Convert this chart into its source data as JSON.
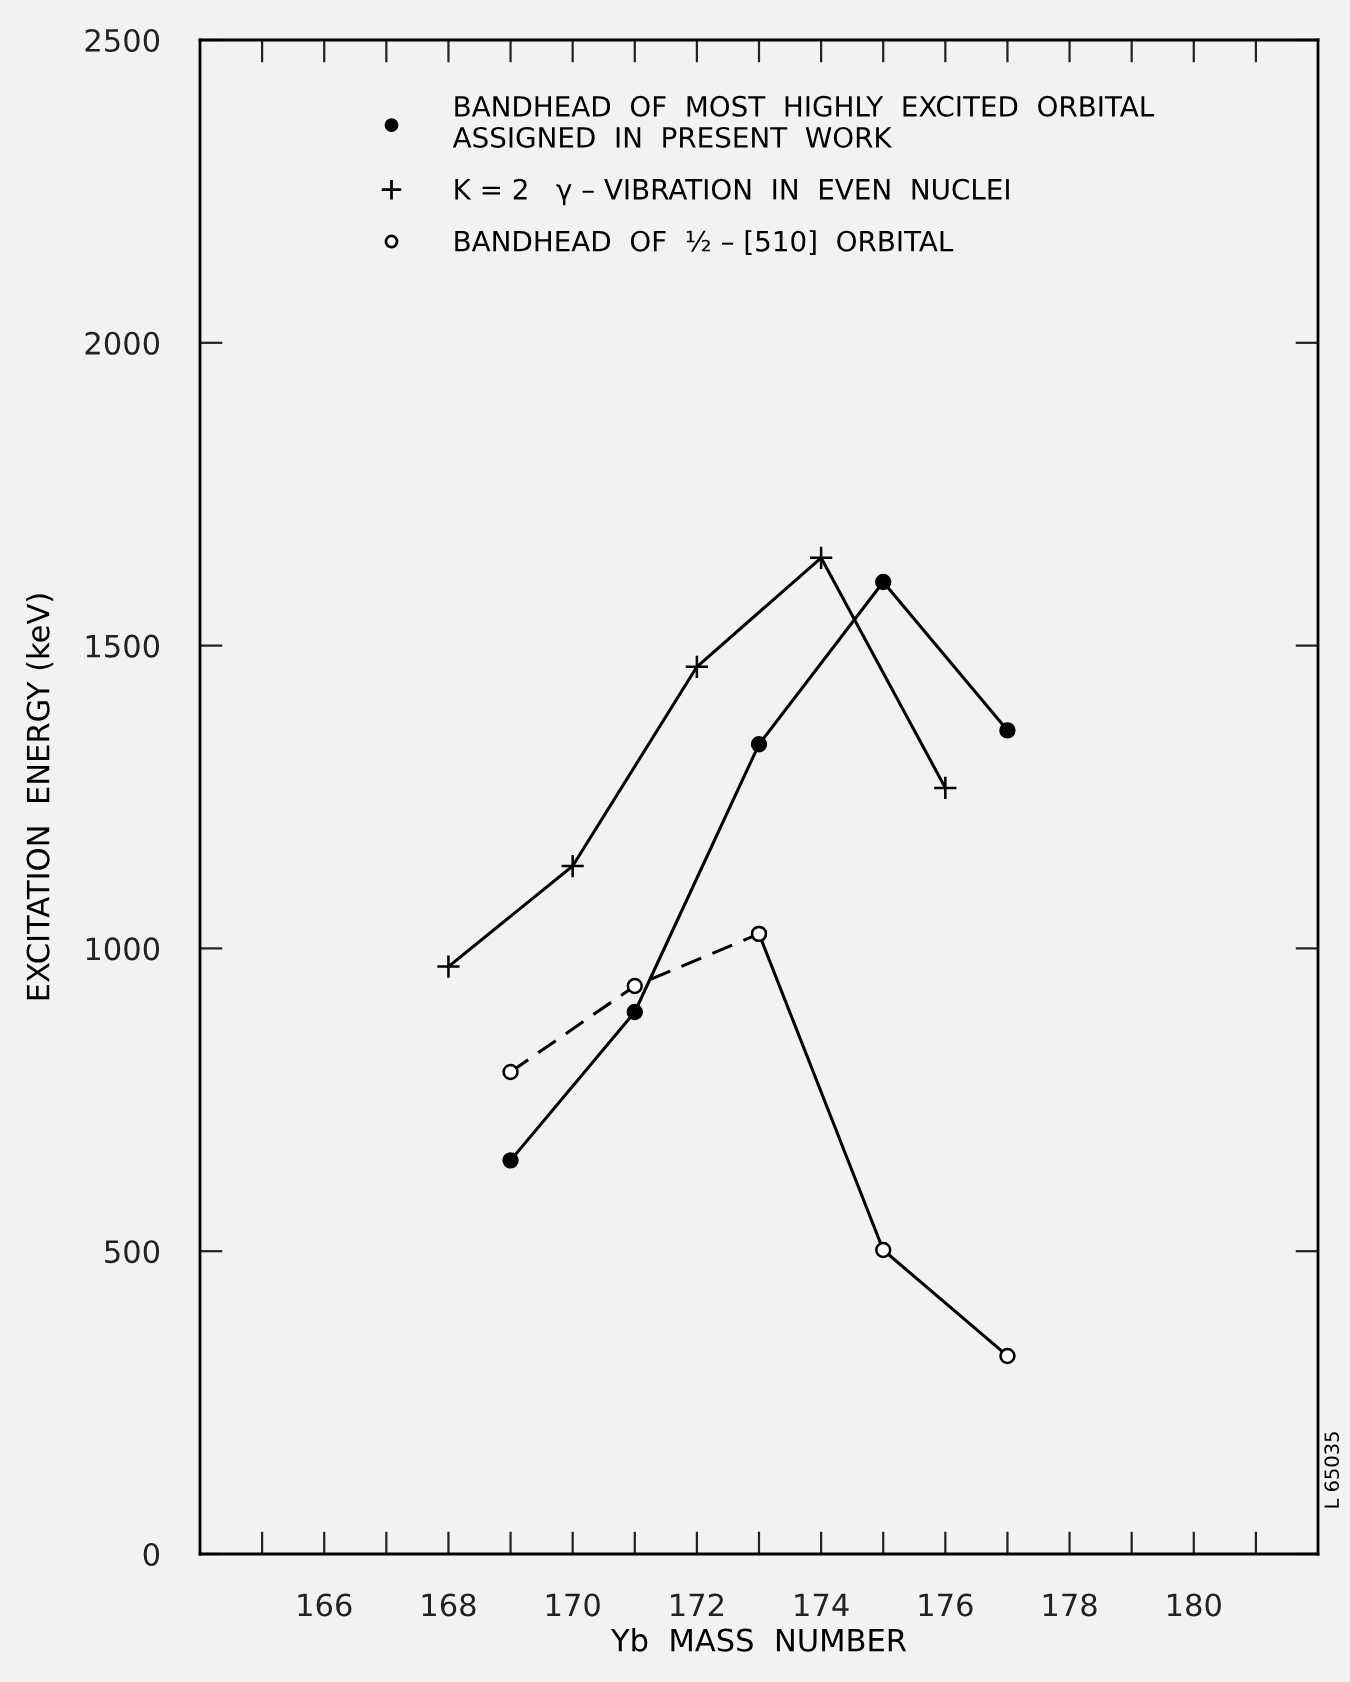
{
  "chart_data": {
    "type": "line",
    "xlabel": "Yb  MASS  NUMBER",
    "ylabel": "EXCITATION  ENERGY (keV)",
    "xlim": [
      164,
      182
    ],
    "ylim": [
      0,
      2500
    ],
    "xticks": [
      {
        "value": 165,
        "label": null
      },
      166,
      {
        "value": 167,
        "label": null
      },
      168,
      {
        "value": 169,
        "label": null
      },
      170,
      {
        "value": 171,
        "label": null
      },
      172,
      {
        "value": 173,
        "label": null
      },
      174,
      {
        "value": 175,
        "label": null
      },
      176,
      {
        "value": 177,
        "label": null
      },
      178,
      {
        "value": 179,
        "label": null
      },
      180,
      {
        "value": 181,
        "label": null
      }
    ],
    "yticks": [
      0,
      500,
      1000,
      1500,
      2000,
      2500
    ],
    "grid": false,
    "legend": "top",
    "series": [
      {
        "name": "BANDHEAD  OF  MOST  HIGHLY  EXCITED  ORBITAL\nASSIGNED  IN  PRESENT  WORK",
        "color": "#000000",
        "marker": "circle",
        "line_style": "solid",
        "x": [
          169,
          171,
          173,
          175,
          177
        ],
        "values": [
          650,
          895,
          1337,
          1605,
          1360
        ]
      },
      {
        "name": "K = 2   γ – VIBRATION  IN  EVEN  NUCLEI",
        "color": "#000000",
        "marker": "cross",
        "line_style": "solid",
        "x": [
          168,
          170,
          172,
          174,
          176
        ],
        "values": [
          970,
          1136,
          1465,
          1645,
          1265
        ]
      },
      {
        "name": "BANDHEAD  OF  ½ – [510]  ORBITAL",
        "color": "#000000",
        "marker": "circle",
        "line_style": "dashed",
        "x": [
          169,
          171,
          173
        ],
        "values": [
          796,
          938,
          1024
        ]
      },
      {
        "color": "#000000",
        "marker": "circle",
        "line_style": "solid",
        "x": [
          173,
          175,
          177
        ],
        "values": [
          1024,
          502,
          327
        ]
      }
    ],
    "annotations": [
      "L 65035"
    ]
  }
}
